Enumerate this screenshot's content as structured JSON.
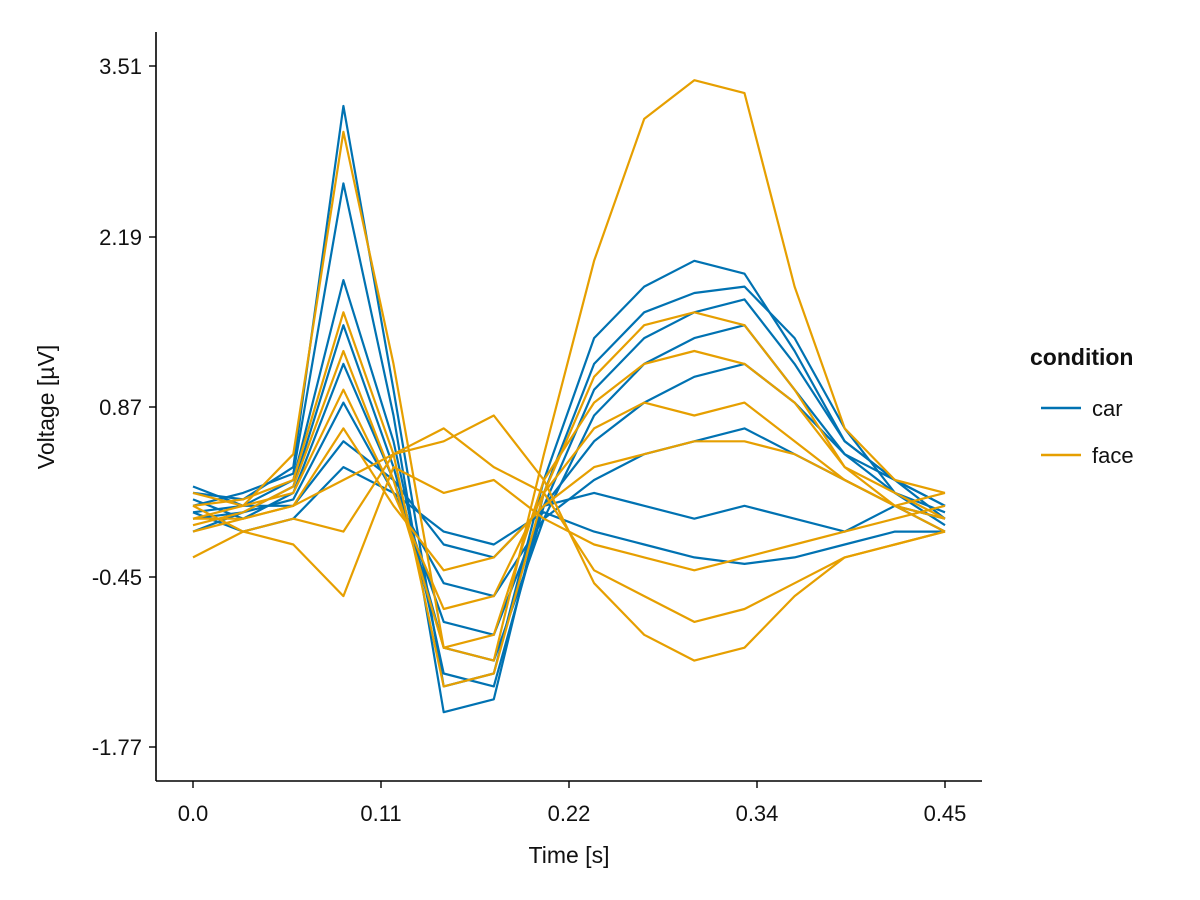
{
  "chart_data": {
    "type": "line",
    "xlabel": "Time [s]",
    "ylabel": "Voltage [µV]",
    "xlim": [
      0.0,
      0.45
    ],
    "ylim": [
      -1.77,
      3.51
    ],
    "x_ticks": [
      "0.0",
      "0.11",
      "0.22",
      "0.34",
      "0.45"
    ],
    "y_ticks": [
      "3.51",
      "2.19",
      "0.87",
      "-0.45",
      "-1.77"
    ],
    "legend": {
      "title": "condition",
      "placement": "right",
      "entries": [
        {
          "name": "car",
          "color": "#0072B2"
        },
        {
          "name": "face",
          "color": "#E69F00"
        }
      ]
    },
    "grid": false,
    "series": [
      {
        "group": "car",
        "color": "#0072B2",
        "x": [
          0,
          0.03,
          0.06,
          0.09,
          0.12,
          0.15,
          0.18,
          0.21,
          0.24,
          0.27,
          0.3,
          0.33,
          0.36,
          0.39,
          0.42,
          0.45
        ],
        "y": [
          0.2,
          0.15,
          0.4,
          3.2,
          1.0,
          -1.3,
          -1.2,
          0.3,
          1.4,
          1.8,
          2.0,
          1.9,
          1.3,
          0.6,
          0.3,
          0.1
        ]
      },
      {
        "group": "car",
        "color": "#0072B2",
        "x": [
          0,
          0.03,
          0.06,
          0.09,
          0.12,
          0.15,
          0.18,
          0.21,
          0.24,
          0.27,
          0.3,
          0.33,
          0.36,
          0.39,
          0.42,
          0.45
        ],
        "y": [
          0.1,
          0.2,
          0.35,
          2.6,
          0.8,
          -1.5,
          -1.4,
          0.2,
          1.2,
          1.6,
          1.75,
          1.8,
          1.4,
          0.7,
          0.2,
          0.05
        ]
      },
      {
        "group": "car",
        "color": "#0072B2",
        "x": [
          0,
          0.03,
          0.06,
          0.09,
          0.12,
          0.15,
          0.18,
          0.21,
          0.24,
          0.27,
          0.3,
          0.33,
          0.36,
          0.39,
          0.42,
          0.45
        ],
        "y": [
          0.05,
          0.1,
          0.3,
          1.85,
          0.6,
          -1.2,
          -1.3,
          0.1,
          1.0,
          1.4,
          1.6,
          1.7,
          1.2,
          0.6,
          0.3,
          0.0
        ]
      },
      {
        "group": "car",
        "color": "#0072B2",
        "x": [
          0,
          0.03,
          0.06,
          0.09,
          0.12,
          0.15,
          0.18,
          0.21,
          0.24,
          0.27,
          0.3,
          0.33,
          0.36,
          0.39,
          0.42,
          0.45
        ],
        "y": [
          0.0,
          0.05,
          0.25,
          1.5,
          0.4,
          -1.0,
          -1.1,
          0.0,
          0.8,
          1.2,
          1.4,
          1.5,
          1.0,
          0.5,
          0.2,
          -0.05
        ]
      },
      {
        "group": "car",
        "color": "#0072B2",
        "x": [
          0,
          0.03,
          0.06,
          0.09,
          0.12,
          0.15,
          0.18,
          0.21,
          0.24,
          0.27,
          0.3,
          0.33,
          0.36,
          0.39,
          0.42,
          0.45
        ],
        "y": [
          0.15,
          0.0,
          0.2,
          1.2,
          0.3,
          -0.8,
          -0.9,
          0.1,
          0.6,
          0.9,
          1.1,
          1.2,
          0.9,
          0.5,
          0.3,
          0.1
        ]
      },
      {
        "group": "car",
        "color": "#0072B2",
        "x": [
          0,
          0.03,
          0.06,
          0.09,
          0.12,
          0.15,
          0.18,
          0.21,
          0.24,
          0.27,
          0.3,
          0.33,
          0.36,
          0.39,
          0.42,
          0.45
        ],
        "y": [
          -0.1,
          0.05,
          0.15,
          0.9,
          0.2,
          -0.5,
          -0.6,
          0.0,
          0.3,
          0.5,
          0.6,
          0.7,
          0.5,
          0.3,
          0.1,
          -0.1
        ]
      },
      {
        "group": "car",
        "color": "#0072B2",
        "x": [
          0,
          0.03,
          0.06,
          0.09,
          0.12,
          0.15,
          0.18,
          0.21,
          0.24,
          0.27,
          0.3,
          0.33,
          0.36,
          0.39,
          0.42,
          0.45
        ],
        "y": [
          0.25,
          0.1,
          0.1,
          0.6,
          0.3,
          -0.2,
          -0.3,
          0.1,
          0.2,
          0.1,
          0.0,
          0.1,
          0.0,
          -0.1,
          0.1,
          0.0
        ]
      },
      {
        "group": "car",
        "color": "#0072B2",
        "x": [
          0,
          0.03,
          0.06,
          0.09,
          0.12,
          0.15,
          0.18,
          0.21,
          0.24,
          0.27,
          0.3,
          0.33,
          0.36,
          0.39,
          0.42,
          0.45
        ],
        "y": [
          0.05,
          -0.1,
          0.0,
          0.4,
          0.2,
          -0.1,
          -0.2,
          0.05,
          -0.1,
          -0.2,
          -0.3,
          -0.35,
          -0.3,
          -0.2,
          -0.1,
          -0.1
        ]
      },
      {
        "group": "face",
        "color": "#E69F00",
        "x": [
          0,
          0.03,
          0.06,
          0.09,
          0.12,
          0.15,
          0.18,
          0.21,
          0.24,
          0.27,
          0.3,
          0.33,
          0.36,
          0.39,
          0.42,
          0.45
        ],
        "y": [
          0.0,
          0.1,
          0.5,
          3.0,
          1.2,
          -1.0,
          -1.1,
          0.5,
          2.0,
          3.1,
          3.4,
          3.3,
          1.8,
          0.7,
          0.3,
          0.2
        ]
      },
      {
        "group": "face",
        "color": "#E69F00",
        "x": [
          0,
          0.03,
          0.06,
          0.09,
          0.12,
          0.15,
          0.18,
          0.21,
          0.24,
          0.27,
          0.3,
          0.33,
          0.36,
          0.39,
          0.42,
          0.45
        ],
        "y": [
          0.1,
          0.15,
          0.3,
          1.6,
          0.5,
          -1.3,
          -1.2,
          0.2,
          1.1,
          1.5,
          1.6,
          1.5,
          1.0,
          0.4,
          0.2,
          0.0
        ]
      },
      {
        "group": "face",
        "color": "#E69F00",
        "x": [
          0,
          0.03,
          0.06,
          0.09,
          0.12,
          0.15,
          0.18,
          0.21,
          0.24,
          0.27,
          0.3,
          0.33,
          0.36,
          0.39,
          0.42,
          0.45
        ],
        "y": [
          -0.05,
          0.05,
          0.25,
          1.3,
          0.3,
          -1.0,
          -0.9,
          0.3,
          0.9,
          1.2,
          1.3,
          1.2,
          0.9,
          0.4,
          0.1,
          -0.1
        ]
      },
      {
        "group": "face",
        "color": "#E69F00",
        "x": [
          0,
          0.03,
          0.06,
          0.09,
          0.12,
          0.15,
          0.18,
          0.21,
          0.24,
          0.27,
          0.3,
          0.33,
          0.36,
          0.39,
          0.42,
          0.45
        ],
        "y": [
          0.2,
          0.1,
          0.2,
          1.0,
          0.2,
          -0.7,
          -0.6,
          0.2,
          0.7,
          0.9,
          0.8,
          0.9,
          0.6,
          0.3,
          0.1,
          0.2
        ]
      },
      {
        "group": "face",
        "color": "#E69F00",
        "x": [
          0,
          0.03,
          0.06,
          0.09,
          0.12,
          0.15,
          0.18,
          0.21,
          0.24,
          0.27,
          0.3,
          0.33,
          0.36,
          0.39,
          0.42,
          0.45
        ],
        "y": [
          0.0,
          0.0,
          0.1,
          0.7,
          0.1,
          -0.4,
          -0.3,
          0.1,
          0.4,
          0.5,
          0.6,
          0.6,
          0.5,
          0.3,
          0.1,
          0.0
        ]
      },
      {
        "group": "face",
        "color": "#E69F00",
        "x": [
          0,
          0.03,
          0.06,
          0.09,
          0.12,
          0.15,
          0.18,
          0.21,
          0.24,
          0.27,
          0.3,
          0.33,
          0.36,
          0.39,
          0.42,
          0.45
        ],
        "y": [
          -0.1,
          0.0,
          0.1,
          0.3,
          0.5,
          0.7,
          0.4,
          0.2,
          -0.4,
          -0.6,
          -0.8,
          -0.7,
          -0.5,
          -0.3,
          -0.2,
          -0.1
        ]
      },
      {
        "group": "face",
        "color": "#E69F00",
        "x": [
          0,
          0.03,
          0.06,
          0.09,
          0.12,
          0.15,
          0.18,
          0.21,
          0.24,
          0.27,
          0.3,
          0.33,
          0.36,
          0.39,
          0.42,
          0.45
        ],
        "y": [
          -0.3,
          -0.1,
          0.0,
          -0.1,
          0.5,
          0.6,
          0.8,
          0.3,
          -0.5,
          -0.9,
          -1.1,
          -1.0,
          -0.6,
          -0.3,
          -0.2,
          -0.1
        ]
      },
      {
        "group": "face",
        "color": "#E69F00",
        "x": [
          0,
          0.03,
          0.06,
          0.09,
          0.12,
          0.15,
          0.18,
          0.21,
          0.24,
          0.27,
          0.3,
          0.33,
          0.36,
          0.39,
          0.42,
          0.45
        ],
        "y": [
          0.1,
          -0.1,
          -0.2,
          -0.6,
          0.4,
          0.2,
          0.3,
          0.0,
          -0.2,
          -0.3,
          -0.4,
          -0.3,
          -0.2,
          -0.1,
          0.0,
          0.1
        ]
      }
    ]
  }
}
